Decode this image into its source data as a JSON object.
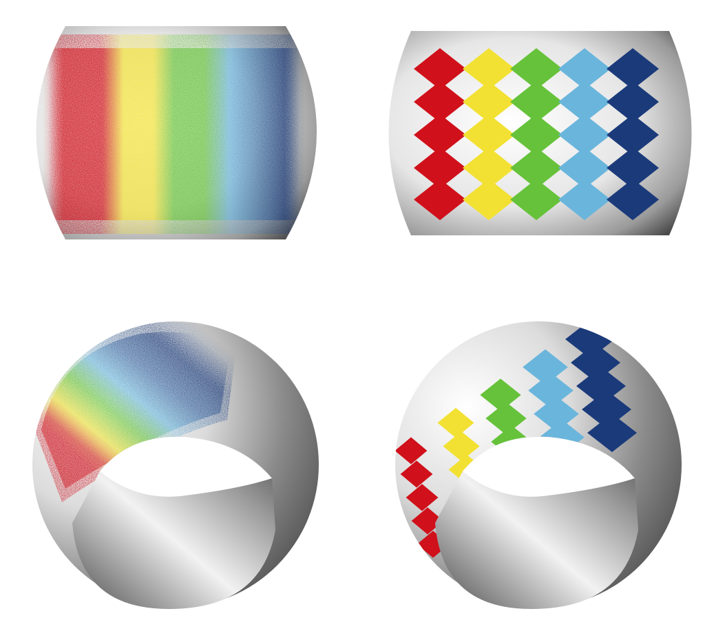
{
  "figure": {
    "panels": [
      {
        "id": "top-left",
        "view": "side",
        "pattern": "point-cloud"
      },
      {
        "id": "top-right",
        "view": "side",
        "pattern": "diamond-patches"
      },
      {
        "id": "bottom-left",
        "view": "oblique",
        "pattern": "point-cloud"
      },
      {
        "id": "bottom-right",
        "view": "oblique",
        "pattern": "diamond-patches"
      }
    ],
    "band_colors": [
      "#d0101a",
      "#f2e132",
      "#66c23a",
      "#6ab5dc",
      "#1a3a7a"
    ],
    "surface_colors": {
      "light": "#f4f4f4",
      "mid": "#bdbdbd",
      "dark": "#4a4a4a"
    }
  }
}
